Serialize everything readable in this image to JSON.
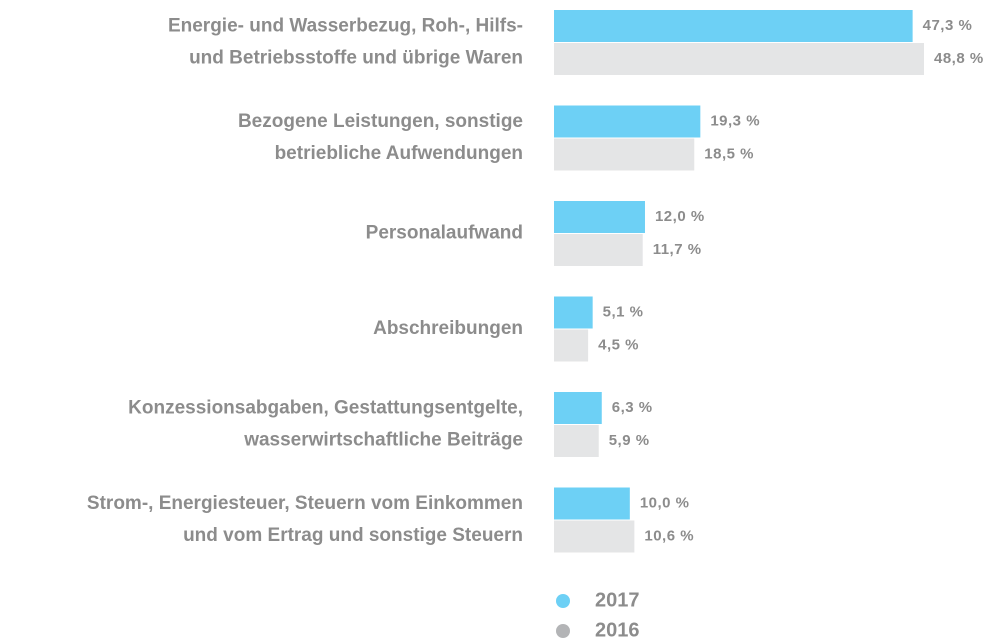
{
  "chart_data": {
    "type": "bar",
    "orientation": "horizontal",
    "categories": [
      [
        "Energie- und Wasserbezug, Roh-, Hilfs-",
        "und Betriebsstoffe und übrige Waren"
      ],
      [
        "Bezogene Leistungen, sonstige",
        "betriebliche Aufwendungen"
      ],
      [
        "Personalaufwand"
      ],
      [
        "Abschreibungen"
      ],
      [
        "Konzessionsabgaben, Gestattungsentgelte,",
        "wasserwirtschaftliche Beiträge"
      ],
      [
        "Strom-, Energiesteuer, Steuern vom Einkommen",
        "und vom Ertrag und sonstige Steuern"
      ]
    ],
    "series": [
      {
        "name": "2017",
        "color": "#6dd0f5",
        "marker_color": "#6dd0f5",
        "values": [
          47.3,
          19.3,
          12.0,
          5.1,
          6.3,
          10.0
        ],
        "value_labels": [
          "47,3 %",
          "19,3 %",
          "12,0 %",
          "5,1 %",
          "6,3 %",
          "10,0 %"
        ]
      },
      {
        "name": "2016",
        "color": "#e4e5e6",
        "marker_color": "#b3b4b6",
        "values": [
          48.8,
          18.5,
          11.7,
          4.5,
          5.9,
          10.6
        ],
        "value_labels": [
          "48,8 %",
          "18,5 %",
          "11,7 %",
          "4,5 %",
          "5,9 %",
          "10,6 %"
        ]
      }
    ],
    "legend": "bottom"
  }
}
